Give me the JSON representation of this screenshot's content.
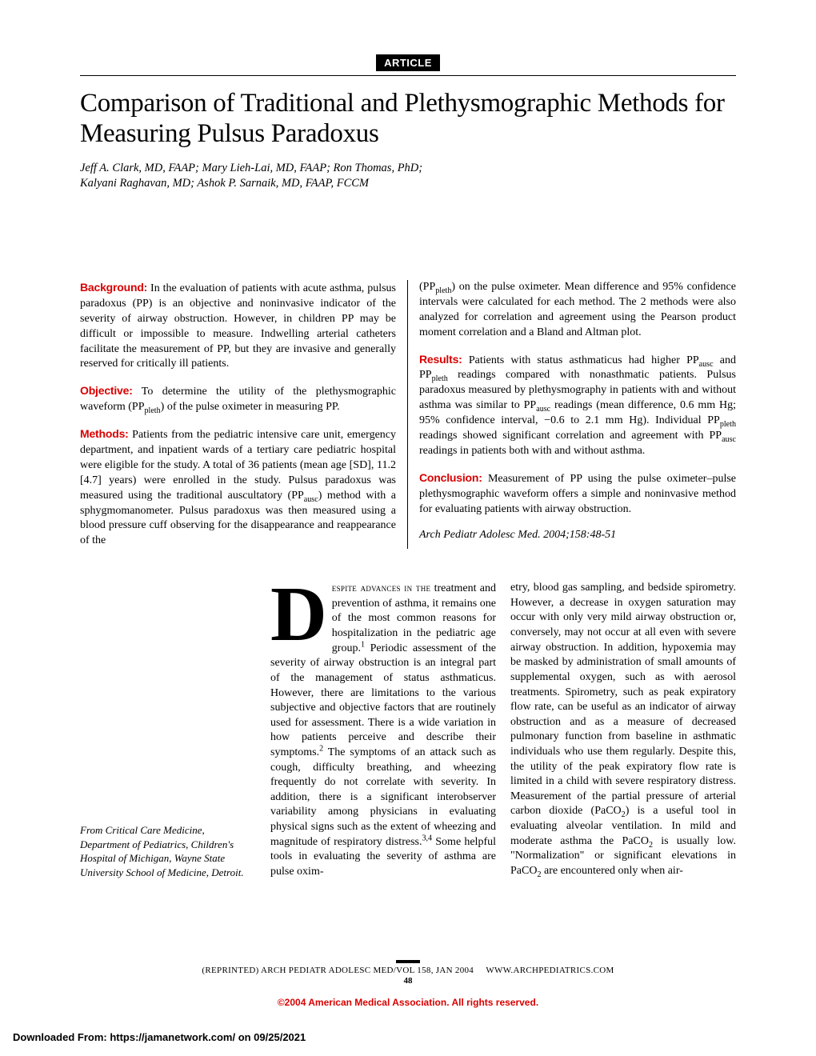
{
  "label": "ARTICLE",
  "title": "Comparison of Traditional and Plethysmographic Methods for Measuring Pulsus Paradoxus",
  "authors_line1": "Jeff A. Clark, MD, FAAP; Mary Lieh-Lai, MD, FAAP; Ron Thomas, PhD;",
  "authors_line2": "Kalyani Raghavan, MD; Ashok P. Sarnaik, MD, FAAP, FCCM",
  "abstract": {
    "background_label": "Background:",
    "background": " In the evaluation of patients with acute asthma, pulsus paradoxus (PP) is an objective and noninvasive indicator of the severity of airway obstruction. However, in children PP may be difficult or impossible to measure. Indwelling arterial catheters facilitate the measurement of PP, but they are invasive and generally reserved for critically ill patients.",
    "objective_label": "Objective:",
    "objective_a": " To determine the utility of the plethysmographic waveform (PP",
    "objective_b": ") of the pulse oximeter in measuring PP.",
    "methods_label": "Methods:",
    "methods_a": " Patients from the pediatric intensive care unit, emergency department, and inpatient wards of a tertiary care pediatric hospital were eligible for the study. A total of 36 patients (mean age [SD], 11.2 [4.7] years) were enrolled in the study. Pulsus paradoxus was measured using the traditional auscultatory (PP",
    "methods_b": ") method with a sphygmomanometer. Pulsus paradoxus was then measured using a blood pressure cuff observing for the disappearance and reappearance of the",
    "methods_c_a": "(PP",
    "methods_c_b": ") on the pulse oximeter. Mean difference and 95% confidence intervals were calculated for each method. The 2 methods were also analyzed for correlation and agreement using the Pearson product moment correlation and a Bland and Altman plot.",
    "results_label": "Results:",
    "results_a": " Patients with status asthmaticus had higher PP",
    "results_b": " and PP",
    "results_c": " readings compared with nonasthmatic patients. Pulsus paradoxus measured by plethysmography in patients with and without asthma was similar to PP",
    "results_d": " readings (mean difference, 0.6 mm Hg; 95% confidence interval, −0.6 to 2.1 mm Hg). Individual PP",
    "results_e": " readings showed significant correlation and agreement with PP",
    "results_f": " readings in patients both with and without asthma.",
    "conclusion_label": "Conclusion:",
    "conclusion": " Measurement of PP using the pulse oximeter–pulse plethysmographic waveform offers a simple and noninvasive method for evaluating patients with airway obstruction.",
    "citation": "Arch Pediatr Adolesc Med. 2004;158:48-51"
  },
  "affiliation": "From Critical Care Medicine, Department of Pediatrics, Children's Hospital of Michigan, Wayne State University School of Medicine, Detroit.",
  "body": {
    "dropcap": "D",
    "smallcaps": "espite advances in the",
    "col1_a": "treatment and prevention of asthma, it remains one of the most common reasons for hos",
    "col1_b": "pitalization in the pediatric age group.",
    "col1_c": " Periodic assessment of the severity of airway obstruction is an integral part of the management of status asthmaticus. However, there are limitations to the various subjective and objective factors that are routinely used for assessment. There is a wide variation in how patients perceive and describe their symptoms.",
    "col1_d": " The symptoms of an attack such as cough, difficulty breathing, and wheezing frequently do not correlate with severity. In addition, there is a significant interobserver variability among physicians in evaluating physical signs such as the extent of wheezing and magnitude of respiratory distress.",
    "col1_e": " Some helpful tools in evaluating the severity of asthma are pulse oxim-",
    "col2_a": "etry, blood gas sampling, and bedside spirometry. However, a decrease in oxygen saturation may occur with only very mild airway obstruction or, conversely, may not occur at all even with severe airway obstruction. In addition, hypoxemia may be masked by administration of small amounts of supplemental oxygen, such as with aerosol treatments. Spirometry, such as peak expiratory flow rate, can be useful as an indicator of airway obstruction and as a measure of decreased pulmonary function from baseline in asthmatic individuals who use them regularly. Despite this, the utility of the peak expiratory flow rate is limited in a child with severe respiratory distress. Measurement of the partial pressure of arterial carbon dioxide (Pa",
    "col2_b": ") is a useful tool in evaluating alveolar ventilation. In mild and moderate asthma the Pa",
    "col2_c": " is usually low. \"Normalization\" or significant elevations in Pa",
    "col2_d": " are encountered only when air-",
    "co2": "CO",
    "two": "2",
    "sup1": "1",
    "sup2": "2",
    "sup34": "3,4"
  },
  "sub_pleth": "pleth",
  "sub_ausc": "ausc",
  "footer": {
    "line_left": "(REPRINTED) ARCH PEDIATR ADOLESC MED/VOL 158, JAN 2004",
    "line_right": "WWW.ARCHPEDIATRICS.COM",
    "page": "48",
    "copyright": "©2004 American Medical Association. All rights reserved."
  },
  "download": "Downloaded From: https://jamanetwork.com/ on 09/25/2021"
}
